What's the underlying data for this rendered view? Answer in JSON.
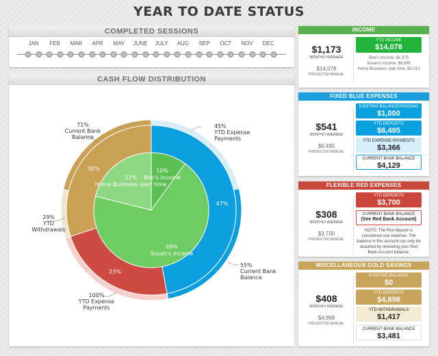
{
  "page": {
    "title": "YEAR TO DATE STATUS"
  },
  "sessions": {
    "title": "COMPLETED SESSIONS",
    "months": [
      "JAN",
      "FEB",
      "MAR",
      "APR",
      "MAY",
      "JUNE",
      "JULY",
      "AUG",
      "SEP",
      "OCT",
      "NOV",
      "DEC"
    ],
    "dot_count": 24
  },
  "cashflow": {
    "title": "CASH FLOW DISTRIBUTION"
  },
  "chart_data": {
    "type": "pie",
    "inner": [
      {
        "value": 10,
        "label": "10%",
        "name": "Bob's Income",
        "color": "#5cbf52"
      },
      {
        "value": 21,
        "label": "21%",
        "name": "Home Business--part time",
        "color": "#8fd883"
      },
      {
        "value": 69,
        "label": "69%",
        "name": "Susan's Income",
        "color": "#6dcc62"
      }
    ],
    "outer": [
      {
        "value": 47,
        "label": "47%",
        "color": "#0b9fe0"
      },
      {
        "value": 23,
        "label": "23%",
        "color": "#cd4b40"
      },
      {
        "value": 30,
        "label": "30%",
        "color": "#c9a054"
      }
    ],
    "callouts": [
      {
        "pct": "45%",
        "text": [
          "YTD Expense",
          "Payments"
        ]
      },
      {
        "pct": "55%",
        "text": [
          "Current Bank",
          "Balance"
        ]
      },
      {
        "pct": "100%",
        "text": [
          "YTD Expense",
          "Payments"
        ]
      },
      {
        "pct": "29%",
        "text": [
          "YTD",
          "Withdrawals"
        ]
      },
      {
        "pct": "71%",
        "text": [
          "Current Bank",
          "Balance"
        ]
      }
    ]
  },
  "income": {
    "title": "INCOME",
    "color": "#5ab04e",
    "avg": "$1,173",
    "avg_label": "MONTHLY AVERAGE",
    "proj": "$14,078",
    "proj_label": "PROJECTED ANNUAL",
    "box": {
      "label": "YTD INCOME",
      "value": "$14,078"
    },
    "subs": [
      "Bob's Income: $1,375",
      "Susan's Income: $9,690",
      "Home Business--part time: $3,013"
    ]
  },
  "blue": {
    "title": "FIXED BLUE EXPENSES",
    "color": "#1aa0dc",
    "avg": "$541",
    "avg_label": "MONTHLY AVERAGE",
    "proj": "$6,495",
    "proj_label": "PROJECTED ANNUAL",
    "boxes": [
      {
        "label": "EXISTING BALANCE/PADDING",
        "value": "$1,000"
      },
      {
        "label": "YTD DEPOSITS",
        "value": "$6,495"
      },
      {
        "label": "YTD EXPENSE PAYMENTS",
        "value": "$3,366"
      },
      {
        "label": "CURRENT BANK BALANCE",
        "value": "$4,129"
      }
    ]
  },
  "red": {
    "title": "FLEXIBLE RED EXPENSES",
    "color": "#c9483e",
    "avg": "$308",
    "avg_label": "MONTHLY AVERAGE",
    "proj": "$3,700",
    "proj_label": "PROJECTED ANNUAL",
    "boxes": [
      {
        "label": "YTD DEPOSITS",
        "value": "$3,700"
      },
      {
        "label": "CURRENT BANK BALANCE",
        "value": "(See Red Bank Account)"
      }
    ],
    "note": "NOTE: The Red deposit is considered one expense. The balance in this account can only be acquired by reviewing your Red Bank Account balance."
  },
  "gold": {
    "title": "MISCELLANEOUS GOLD SAVINGS",
    "color": "#c8a45a",
    "avg": "$408",
    "avg_label": "MONTHLY AVERAGE",
    "proj": "$4,898",
    "proj_label": "PROJECTED ANNUAL",
    "boxes": [
      {
        "label": "EXISTING BALANCE",
        "value": "$0"
      },
      {
        "label": "YTD DEPOSITS",
        "value": "$4,898"
      },
      {
        "label": "YTD WITHDRAWALS",
        "value": "$1,417"
      },
      {
        "label": "CURRENT BANK BALANCE",
        "value": "$3,481"
      }
    ]
  }
}
